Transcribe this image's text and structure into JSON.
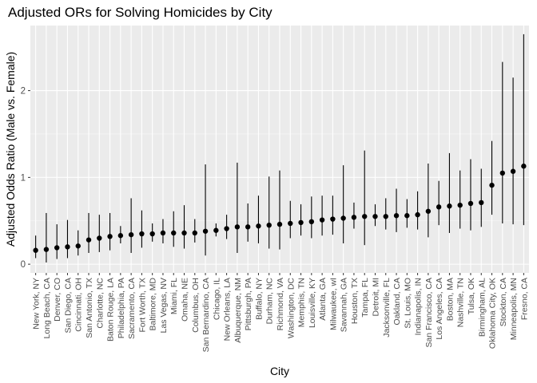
{
  "chart_data": {
    "type": "scatter",
    "title": "Adjusted ORs for Solving Homicides by City",
    "xlabel": "City",
    "ylabel": "Adjusted Odds Ratio (Male vs. Female)",
    "ylim": [
      -0.1,
      2.75
    ],
    "yticks": [
      0,
      1,
      2
    ],
    "grid": true,
    "panel_color": "#ebebeb",
    "point_color": "#000000",
    "categories": [
      "New York, NY",
      "Long Beach, CA",
      "Denver, CO",
      "San Diego, CA",
      "Cincinnati, OH",
      "San Antonio, TX",
      "Charlotte, NC",
      "Baton Rouge, LA",
      "Philadelphia, PA",
      "Sacramento, CA",
      "Fort Worth, TX",
      "Baltimore, MD",
      "Las Vegas, NV",
      "Miami, FL",
      "Omaha, NE",
      "Columbus, OH",
      "San Bernardino, CA",
      "Chicago, IL",
      "New Orleans, LA",
      "Albuquerque, NM",
      "Pittsburgh, PA",
      "Buffalo, NY",
      "Durham, NC",
      "Richmond, VA",
      "Washington, DC",
      "Memphis, TN",
      "Louisville, KY",
      "Atlanta, GA",
      "Milwaukee, wI",
      "Savannah, GA",
      "Houston, TX",
      "Tampa, FL",
      "Detroit, MI",
      "Jacksonville, FL",
      "Oakland, CA",
      "St. Louis, MO",
      "Indianapolis, IN",
      "San Francisco, CA",
      "Los Angeles, CA",
      "Boston, MA",
      "Nashville, TN",
      "Tulsa, OK",
      "Birmingham, AL",
      "Oklahoma City, OK",
      "Stockton, CA",
      "Minneapolis, MN",
      "Fresno, CA"
    ],
    "estimate": [
      0.16,
      0.17,
      0.19,
      0.2,
      0.21,
      0.28,
      0.3,
      0.32,
      0.33,
      0.34,
      0.35,
      0.35,
      0.36,
      0.36,
      0.36,
      0.36,
      0.38,
      0.39,
      0.41,
      0.43,
      0.43,
      0.44,
      0.45,
      0.46,
      0.47,
      0.48,
      0.49,
      0.51,
      0.52,
      0.53,
      0.54,
      0.55,
      0.55,
      0.55,
      0.56,
      0.56,
      0.57,
      0.61,
      0.66,
      0.67,
      0.68,
      0.7,
      0.71,
      0.91,
      1.05,
      1.07,
      1.13
    ],
    "ci_lower": [
      0.07,
      0.02,
      0.06,
      0.07,
      0.1,
      0.13,
      0.14,
      0.16,
      0.24,
      0.13,
      0.19,
      0.26,
      0.24,
      0.2,
      0.18,
      0.25,
      0.1,
      0.32,
      0.29,
      0.13,
      0.26,
      0.24,
      0.18,
      0.17,
      0.3,
      0.33,
      0.3,
      0.33,
      0.34,
      0.24,
      0.41,
      0.22,
      0.44,
      0.4,
      0.37,
      0.42,
      0.4,
      0.31,
      0.45,
      0.36,
      0.41,
      0.39,
      0.43,
      0.57,
      0.47,
      0.46,
      0.45
    ],
    "ci_upper": [
      0.33,
      0.59,
      0.46,
      0.51,
      0.39,
      0.59,
      0.57,
      0.59,
      0.44,
      0.76,
      0.62,
      0.47,
      0.52,
      0.61,
      0.68,
      0.52,
      1.15,
      0.47,
      0.57,
      1.17,
      0.7,
      0.79,
      1.01,
      1.08,
      0.73,
      0.69,
      0.78,
      0.79,
      0.79,
      1.14,
      0.71,
      1.31,
      0.69,
      0.76,
      0.87,
      0.75,
      0.84,
      1.16,
      0.96,
      1.28,
      1.08,
      1.21,
      1.1,
      1.42,
      2.33,
      2.15,
      2.65
    ]
  }
}
